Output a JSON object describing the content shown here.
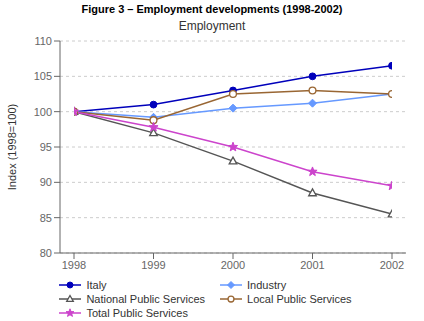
{
  "chart_data": {
    "type": "line",
    "suptitle": "Figure 3 – Employment developments (1998-2002)",
    "title": "Employment",
    "y_label": "Index (1998=100)",
    "x": [
      1998,
      1999,
      2000,
      2001,
      2002
    ],
    "xlim": [
      1998,
      2002
    ],
    "xticks": [
      1998,
      1999,
      2000,
      2001,
      2002
    ],
    "ylim": [
      80,
      110
    ],
    "yticks": [
      80,
      85,
      90,
      95,
      100,
      105,
      110
    ],
    "grid": true,
    "legend": "bottom",
    "series": [
      {
        "name": "Italy",
        "color": "#0000BB",
        "marker": "circle",
        "line_style": "solid",
        "values": [
          100,
          101.0,
          103.0,
          105.0,
          106.5
        ]
      },
      {
        "name": "Industry",
        "color": "#6699FF",
        "marker": "diamond",
        "line_style": "solid",
        "values": [
          100,
          99.2,
          100.5,
          101.2,
          102.5
        ]
      },
      {
        "name": "National Public Services",
        "color": "#555555",
        "marker": "triangle-open",
        "line_style": "solid",
        "values": [
          100,
          97.0,
          93.0,
          88.5,
          85.5
        ]
      },
      {
        "name": "Local Public Services",
        "color": "#996633",
        "marker": "circle-open",
        "line_style": "solid",
        "values": [
          100,
          98.8,
          102.5,
          103.0,
          102.5
        ]
      },
      {
        "name": "Total Public Services",
        "color": "#CC44CC",
        "marker": "star",
        "line_style": "solid",
        "values": [
          100,
          97.8,
          95.0,
          91.5,
          89.5
        ]
      }
    ]
  }
}
